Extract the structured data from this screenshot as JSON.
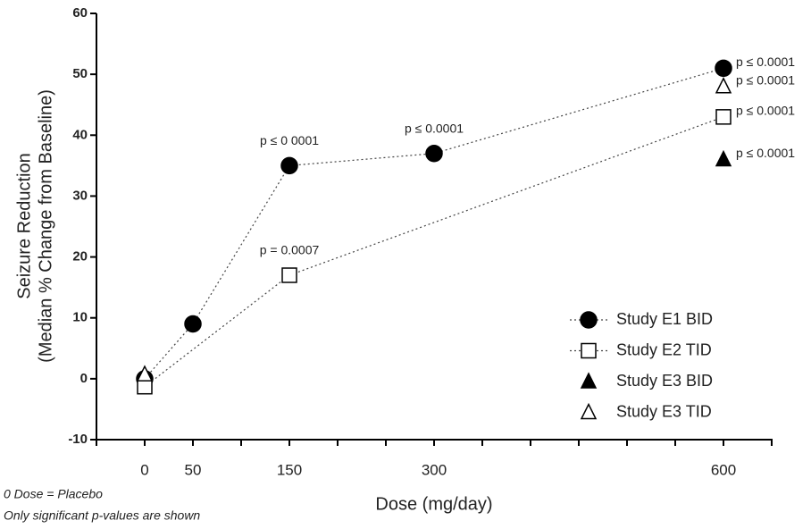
{
  "chart_data": {
    "type": "line",
    "y_label": [
      "Seizure Reduction",
      "(Median % Change from Baseline)"
    ],
    "x_label": "Dose (mg/day)",
    "footnotes": [
      "0 Dose = Placebo",
      "Only significant p-values are shown"
    ],
    "xlim": [
      -50,
      650
    ],
    "xticks": [
      0,
      50,
      150,
      300,
      600
    ],
    "xminorticks": [
      -50,
      100,
      200,
      250,
      350,
      400,
      450,
      500,
      550,
      650
    ],
    "ylim": [
      -10,
      60
    ],
    "yticks": [
      -10,
      0,
      10,
      20,
      30,
      40,
      50,
      60
    ],
    "color": "#000000",
    "series": [
      {
        "name": "Study E1 BID",
        "marker": "circle-filled",
        "line": true,
        "x": [
          0,
          50,
          150,
          300,
          600
        ],
        "values": [
          0,
          9,
          35,
          37,
          51
        ],
        "annotations": [
          null,
          null,
          "p ≤ 0 0001",
          "p ≤ 0.0001",
          "p ≤ 0.0001"
        ]
      },
      {
        "name": "Study E2 TID",
        "marker": "square-open",
        "line": true,
        "x": [
          0,
          150,
          600
        ],
        "values": [
          -1.3,
          17,
          43
        ],
        "annotations": [
          null,
          "p = 0.0007",
          "p ≤ 0.0001"
        ]
      },
      {
        "name": "Study E3 BID",
        "marker": "triangle-filled",
        "line": false,
        "x": [
          600
        ],
        "values": [
          36
        ],
        "annotations": [
          "p ≤ 0.0001"
        ]
      },
      {
        "name": "Study E3 TID",
        "marker": "triangle-open",
        "line": false,
        "x": [
          0,
          600
        ],
        "values": [
          0.7,
          48
        ],
        "annotations": [
          null,
          "p ≤ 0.0001"
        ]
      }
    ]
  }
}
